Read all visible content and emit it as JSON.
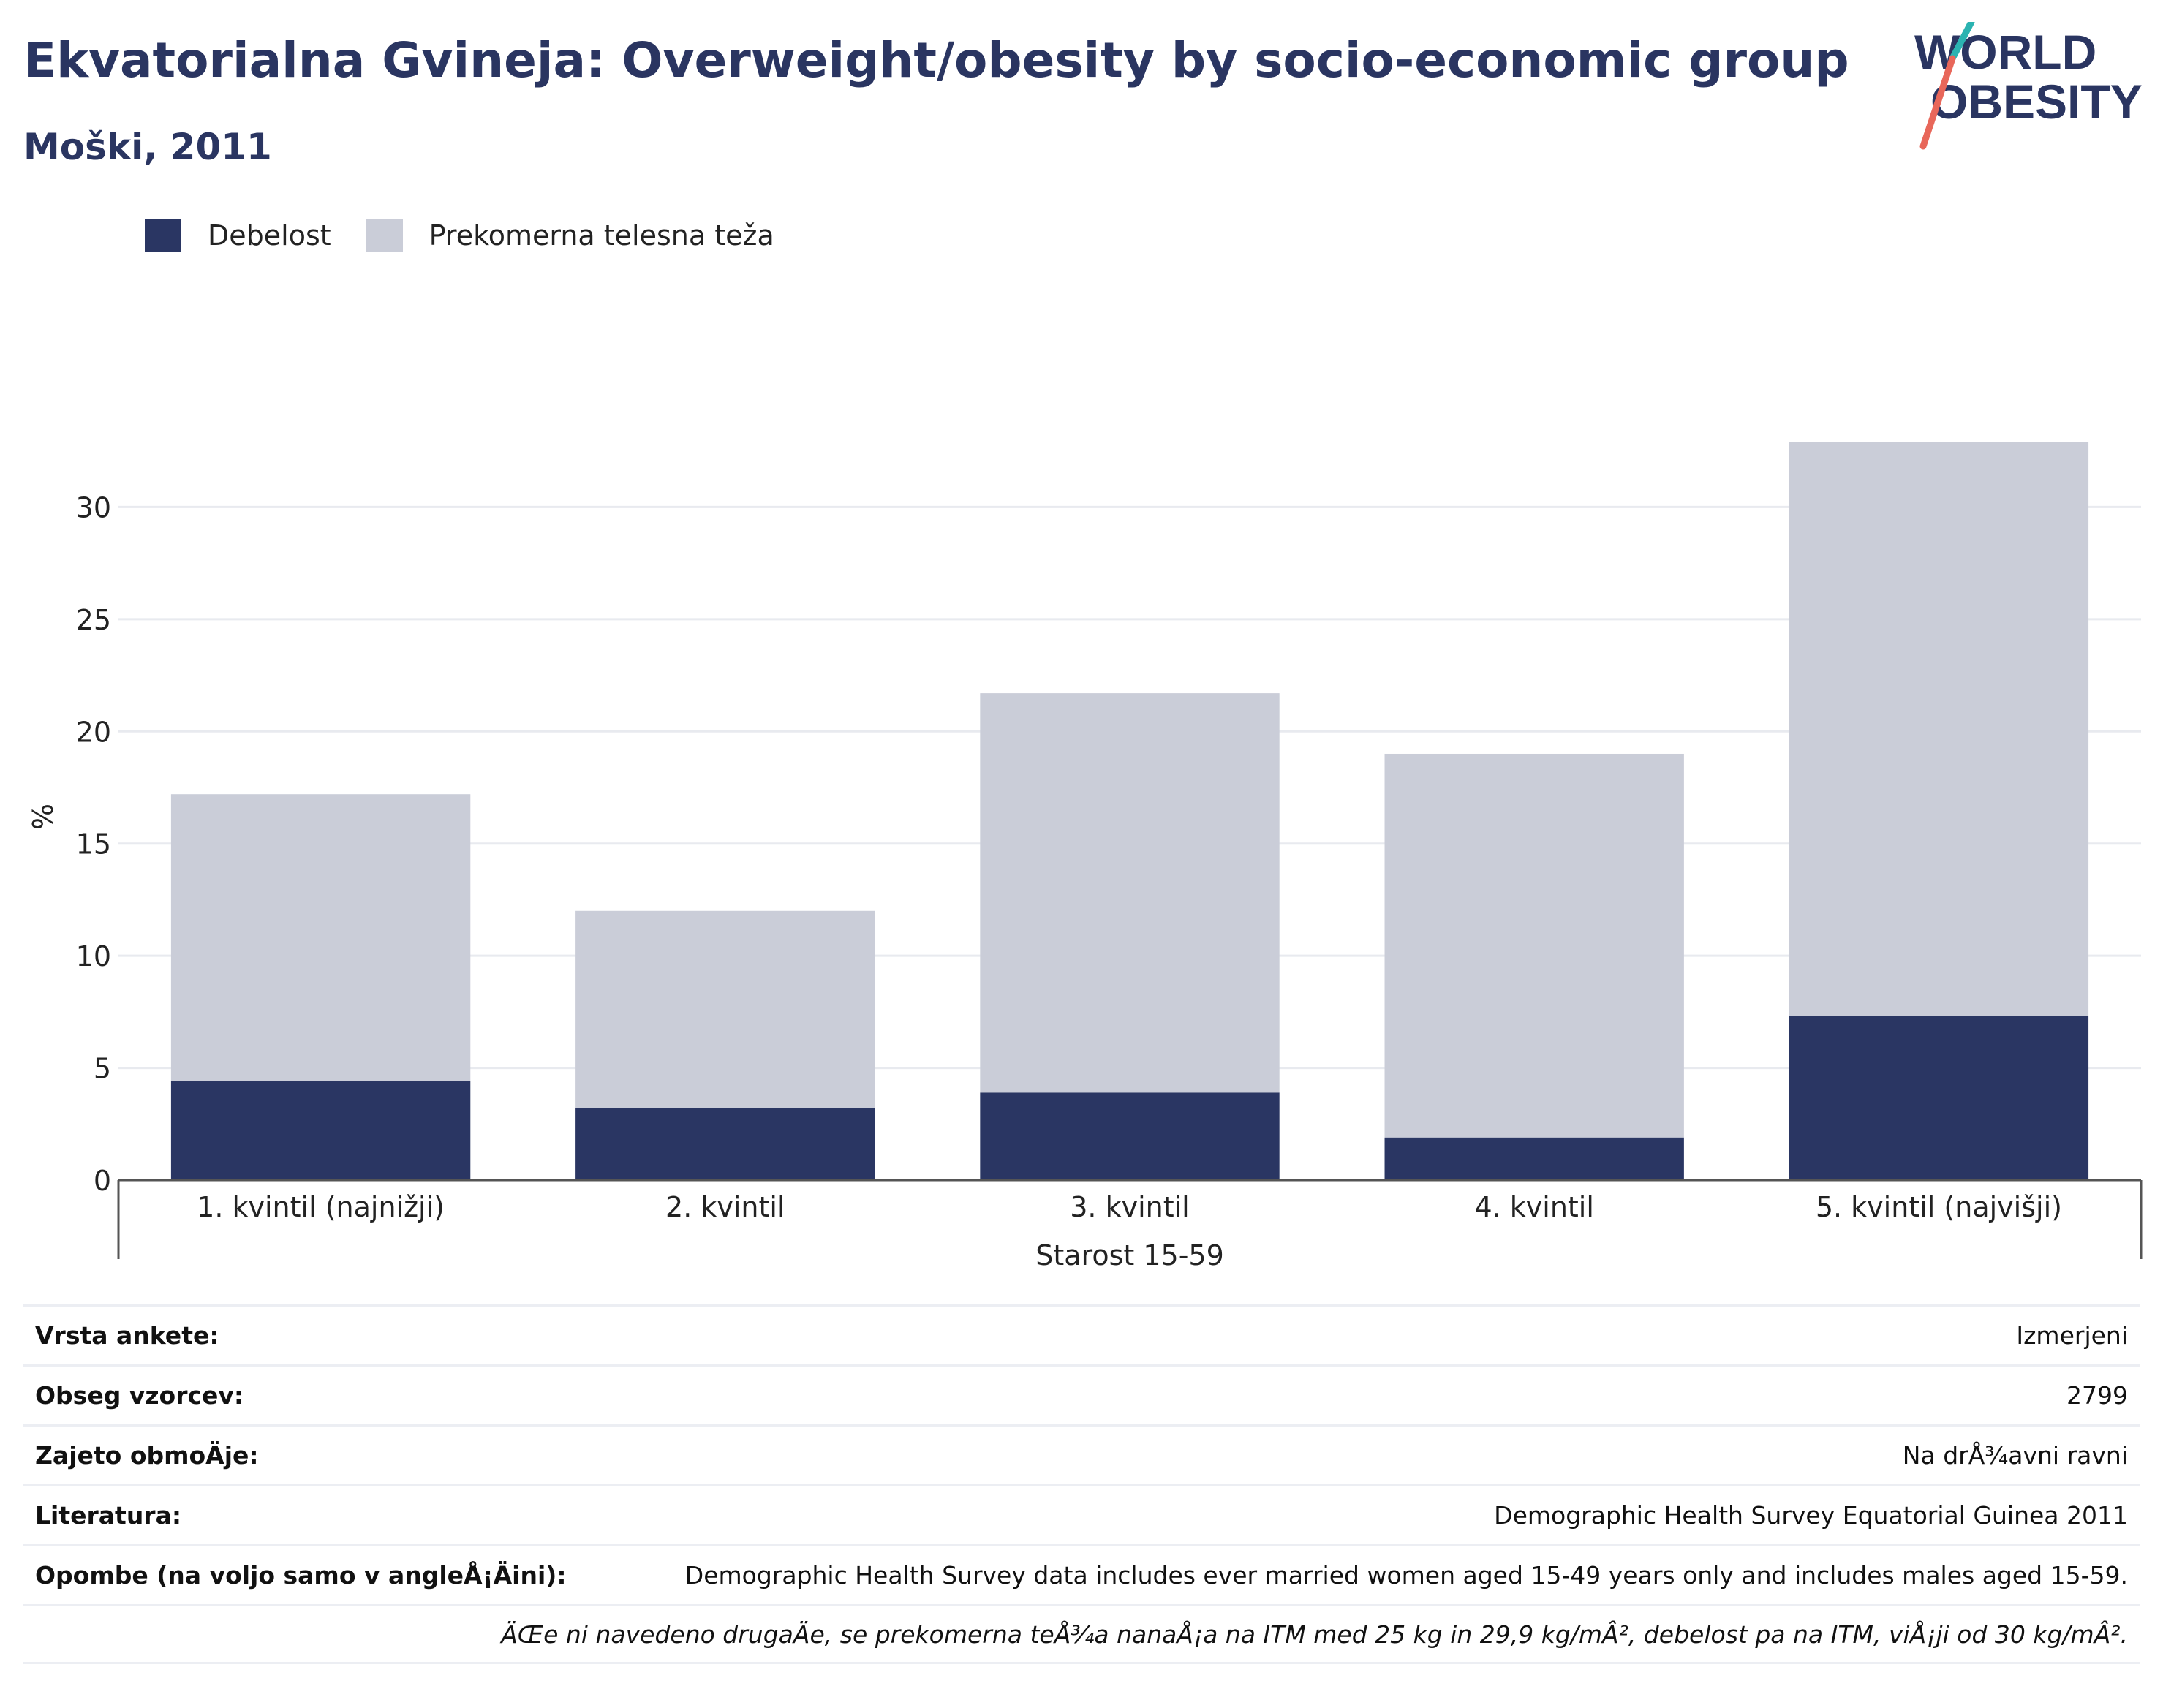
{
  "title": "Ekvatorialna Gvineja: Overweight/obesity by socio-economic group",
  "subtitle": "Moški, 2011",
  "logo": {
    "line1": "WORLD",
    "line2": "OBESITY",
    "accent_teal": "#2bb3b1",
    "accent_coral": "#e8675a"
  },
  "legend": [
    {
      "label": "Debelost",
      "color": "#2a3663"
    },
    {
      "label": "Prekomerna telesna teža",
      "color": "#cacdd8"
    }
  ],
  "chart_data": {
    "type": "bar",
    "stacked": true,
    "categories": [
      "1. kvintil (najnižji)",
      "2. kvintil",
      "3. kvintil",
      "4. kvintil",
      "5. kvintil (najvišji)"
    ],
    "series": [
      {
        "name": "Debelost",
        "values": [
          4.4,
          3.2,
          3.9,
          1.9,
          7.3
        ],
        "color": "#2a3663"
      },
      {
        "name": "Prekomerna telesna teža",
        "values": [
          12.8,
          8.8,
          17.8,
          17.1,
          25.6
        ],
        "color": "#cacdd8"
      }
    ],
    "xlabel": "Starost 15-59",
    "ylabel": "%",
    "ylim": [
      0,
      35
    ],
    "yticks": [
      0,
      5,
      10,
      15,
      20,
      25,
      30
    ],
    "grid": true,
    "legend_position": "top-left"
  },
  "info": [
    {
      "label": "Vrsta ankete:",
      "value": "Izmerjeni"
    },
    {
      "label": "Obseg vzorcev:",
      "value": "2799"
    },
    {
      "label": "Zajeto obmoÄje:",
      "value": "Na drÅ¾avni ravni"
    },
    {
      "label": "Literatura:",
      "value": "Demographic Health Survey Equatorial Guinea 2011"
    },
    {
      "label": "Opombe (na voljo samo v angleÅ¡Äini):",
      "value": "Demographic Health Survey data includes ever married women aged 15-49 years only and includes males aged 15-59."
    },
    {
      "label": "",
      "value": "ÄŒe ni navedeno drugaÄe, se prekomerna teÅ¾a nanaÅ¡a na ITM med 25 kg in 29,9 kg/mÂ², debelost pa na ITM, viÅ¡ji od 30 kg/mÂ²."
    }
  ]
}
